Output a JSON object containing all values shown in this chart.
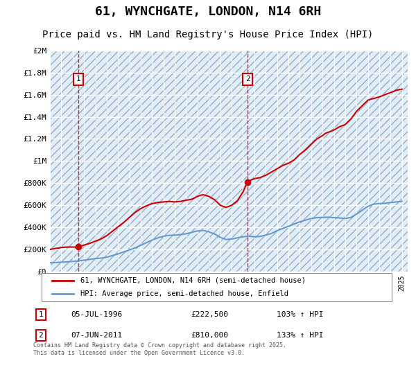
{
  "title": "61, WYNCHGATE, LONDON, N14 6RH",
  "subtitle": "Price paid vs. HM Land Registry's House Price Index (HPI)",
  "title_fontsize": 13,
  "subtitle_fontsize": 10,
  "ylim": [
    0,
    2000000
  ],
  "yticks": [
    0,
    200000,
    400000,
    600000,
    800000,
    1000000,
    1200000,
    1400000,
    1600000,
    1800000,
    2000000
  ],
  "ytick_labels": [
    "£0",
    "£200K",
    "£400K",
    "£600K",
    "£800K",
    "£1M",
    "£1.2M",
    "£1.4M",
    "£1.6M",
    "£1.8M",
    "£2M"
  ],
  "xlim_start": 1994,
  "xlim_end": 2025.5,
  "xlabel": "",
  "sale1_x": 1996.5,
  "sale1_y": 222500,
  "sale1_label": "1",
  "sale1_annotation": "05-JUL-1996    £222,500    103% ↑ HPI",
  "sale2_x": 2011.4,
  "sale2_y": 810000,
  "sale2_label": "2",
  "sale2_annotation": "07-JUN-2011    £810,000    133% ↑ HPI",
  "red_line_color": "#cc0000",
  "blue_line_color": "#6699cc",
  "hatch_color": "#cccccc",
  "bg_color": "#ddeeff",
  "grid_color": "#ffffff",
  "legend_label_red": "61, WYNCHGATE, LONDON, N14 6RH (semi-detached house)",
  "legend_label_blue": "HPI: Average price, semi-detached house, Enfield",
  "footer": "Contains HM Land Registry data © Crown copyright and database right 2025.\nThis data is licensed under the Open Government Licence v3.0.",
  "hpi_x": [
    1994,
    1994.5,
    1995,
    1995.5,
    1996,
    1996.5,
    1997,
    1997.5,
    1998,
    1998.5,
    1999,
    1999.5,
    2000,
    2000.5,
    2001,
    2001.5,
    2002,
    2002.5,
    2003,
    2003.5,
    2004,
    2004.5,
    2005,
    2005.5,
    2006,
    2006.5,
    2007,
    2007.5,
    2008,
    2008.5,
    2009,
    2009.5,
    2010,
    2010.5,
    2011,
    2011.5,
    2012,
    2012.5,
    2013,
    2013.5,
    2014,
    2014.5,
    2015,
    2015.5,
    2016,
    2016.5,
    2017,
    2017.5,
    2018,
    2018.5,
    2019,
    2019.5,
    2020,
    2020.5,
    2021,
    2021.5,
    2022,
    2022.5,
    2023,
    2023.5,
    2024,
    2024.5,
    2025
  ],
  "hpi_y": [
    80000,
    82000,
    85000,
    88000,
    92000,
    97000,
    103000,
    110000,
    118000,
    122000,
    130000,
    145000,
    160000,
    178000,
    195000,
    215000,
    238000,
    262000,
    285000,
    305000,
    320000,
    328000,
    330000,
    335000,
    342000,
    355000,
    368000,
    372000,
    360000,
    340000,
    310000,
    290000,
    295000,
    305000,
    315000,
    320000,
    315000,
    318000,
    330000,
    345000,
    370000,
    390000,
    410000,
    430000,
    450000,
    465000,
    480000,
    488000,
    490000,
    492000,
    488000,
    485000,
    480000,
    490000,
    520000,
    555000,
    590000,
    610000,
    615000,
    618000,
    625000,
    630000,
    635000
  ],
  "prop_x": [
    1994,
    1994.25,
    1994.5,
    1994.75,
    1995,
    1995.25,
    1995.5,
    1995.75,
    1996,
    1996.25,
    1996.5,
    1997,
    1997.5,
    1998,
    1998.5,
    1999,
    1999.5,
    2000,
    2000.5,
    2001,
    2001.5,
    2002,
    2002.5,
    2003,
    2003.5,
    2004,
    2004.5,
    2005,
    2005.5,
    2006,
    2006.5,
    2007,
    2007.25,
    2007.5,
    2008,
    2008.5,
    2009,
    2009.5,
    2010,
    2010.5,
    2011,
    2011.4,
    2011.75,
    2012,
    2012.5,
    2013,
    2013.5,
    2014,
    2014.5,
    2015,
    2015.5,
    2016,
    2016.5,
    2017,
    2017.5,
    2018,
    2018.25,
    2018.5,
    2019,
    2019.5,
    2020,
    2020.5,
    2021,
    2021.5,
    2022,
    2022.25,
    2022.5,
    2023,
    2023.5,
    2024,
    2024.5,
    2025
  ],
  "prop_y": [
    200000,
    205000,
    210000,
    213000,
    218000,
    220000,
    222000,
    222000,
    222000,
    222000,
    222500,
    240000,
    255000,
    275000,
    295000,
    325000,
    365000,
    405000,
    445000,
    490000,
    535000,
    570000,
    595000,
    615000,
    625000,
    630000,
    635000,
    630000,
    635000,
    645000,
    655000,
    680000,
    690000,
    695000,
    680000,
    650000,
    600000,
    580000,
    600000,
    640000,
    720000,
    810000,
    830000,
    840000,
    850000,
    870000,
    900000,
    930000,
    960000,
    980000,
    1010000,
    1060000,
    1100000,
    1150000,
    1200000,
    1230000,
    1250000,
    1260000,
    1280000,
    1310000,
    1330000,
    1380000,
    1450000,
    1500000,
    1550000,
    1560000,
    1565000,
    1580000,
    1600000,
    1620000,
    1640000,
    1650000
  ]
}
